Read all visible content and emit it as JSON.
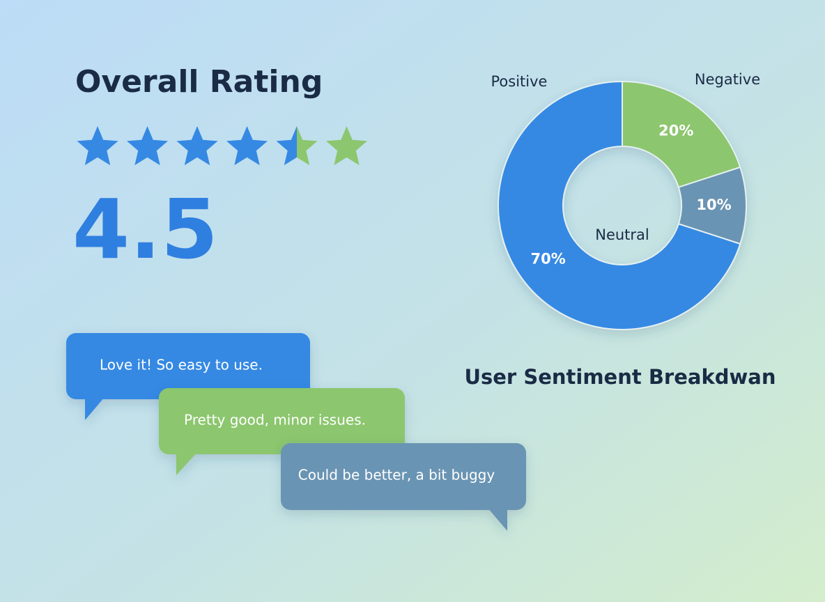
{
  "rating": {
    "title": "Overall Rating",
    "value": 4.5,
    "filled_color": "#3589e3",
    "empty_color": "#8cc66e"
  },
  "comments": [
    {
      "text": "Love it! So easy to use.",
      "color": "#3589e3"
    },
    {
      "text": "Pretty good, minor issues.",
      "color": "#8cc66e"
    },
    {
      "text": "Could be better, a bit buggy",
      "color": "#6b94b3"
    }
  ],
  "chart_data": {
    "type": "donut",
    "title": "User Sentiment Breakdwan",
    "categories": [
      "Negative",
      "Neutral",
      "Positive"
    ],
    "values": [
      20,
      10,
      70
    ],
    "value_labels": [
      "20%",
      "10%",
      "70%"
    ],
    "colors": [
      "#8cc66e",
      "#6b94b3",
      "#3589e3"
    ]
  }
}
